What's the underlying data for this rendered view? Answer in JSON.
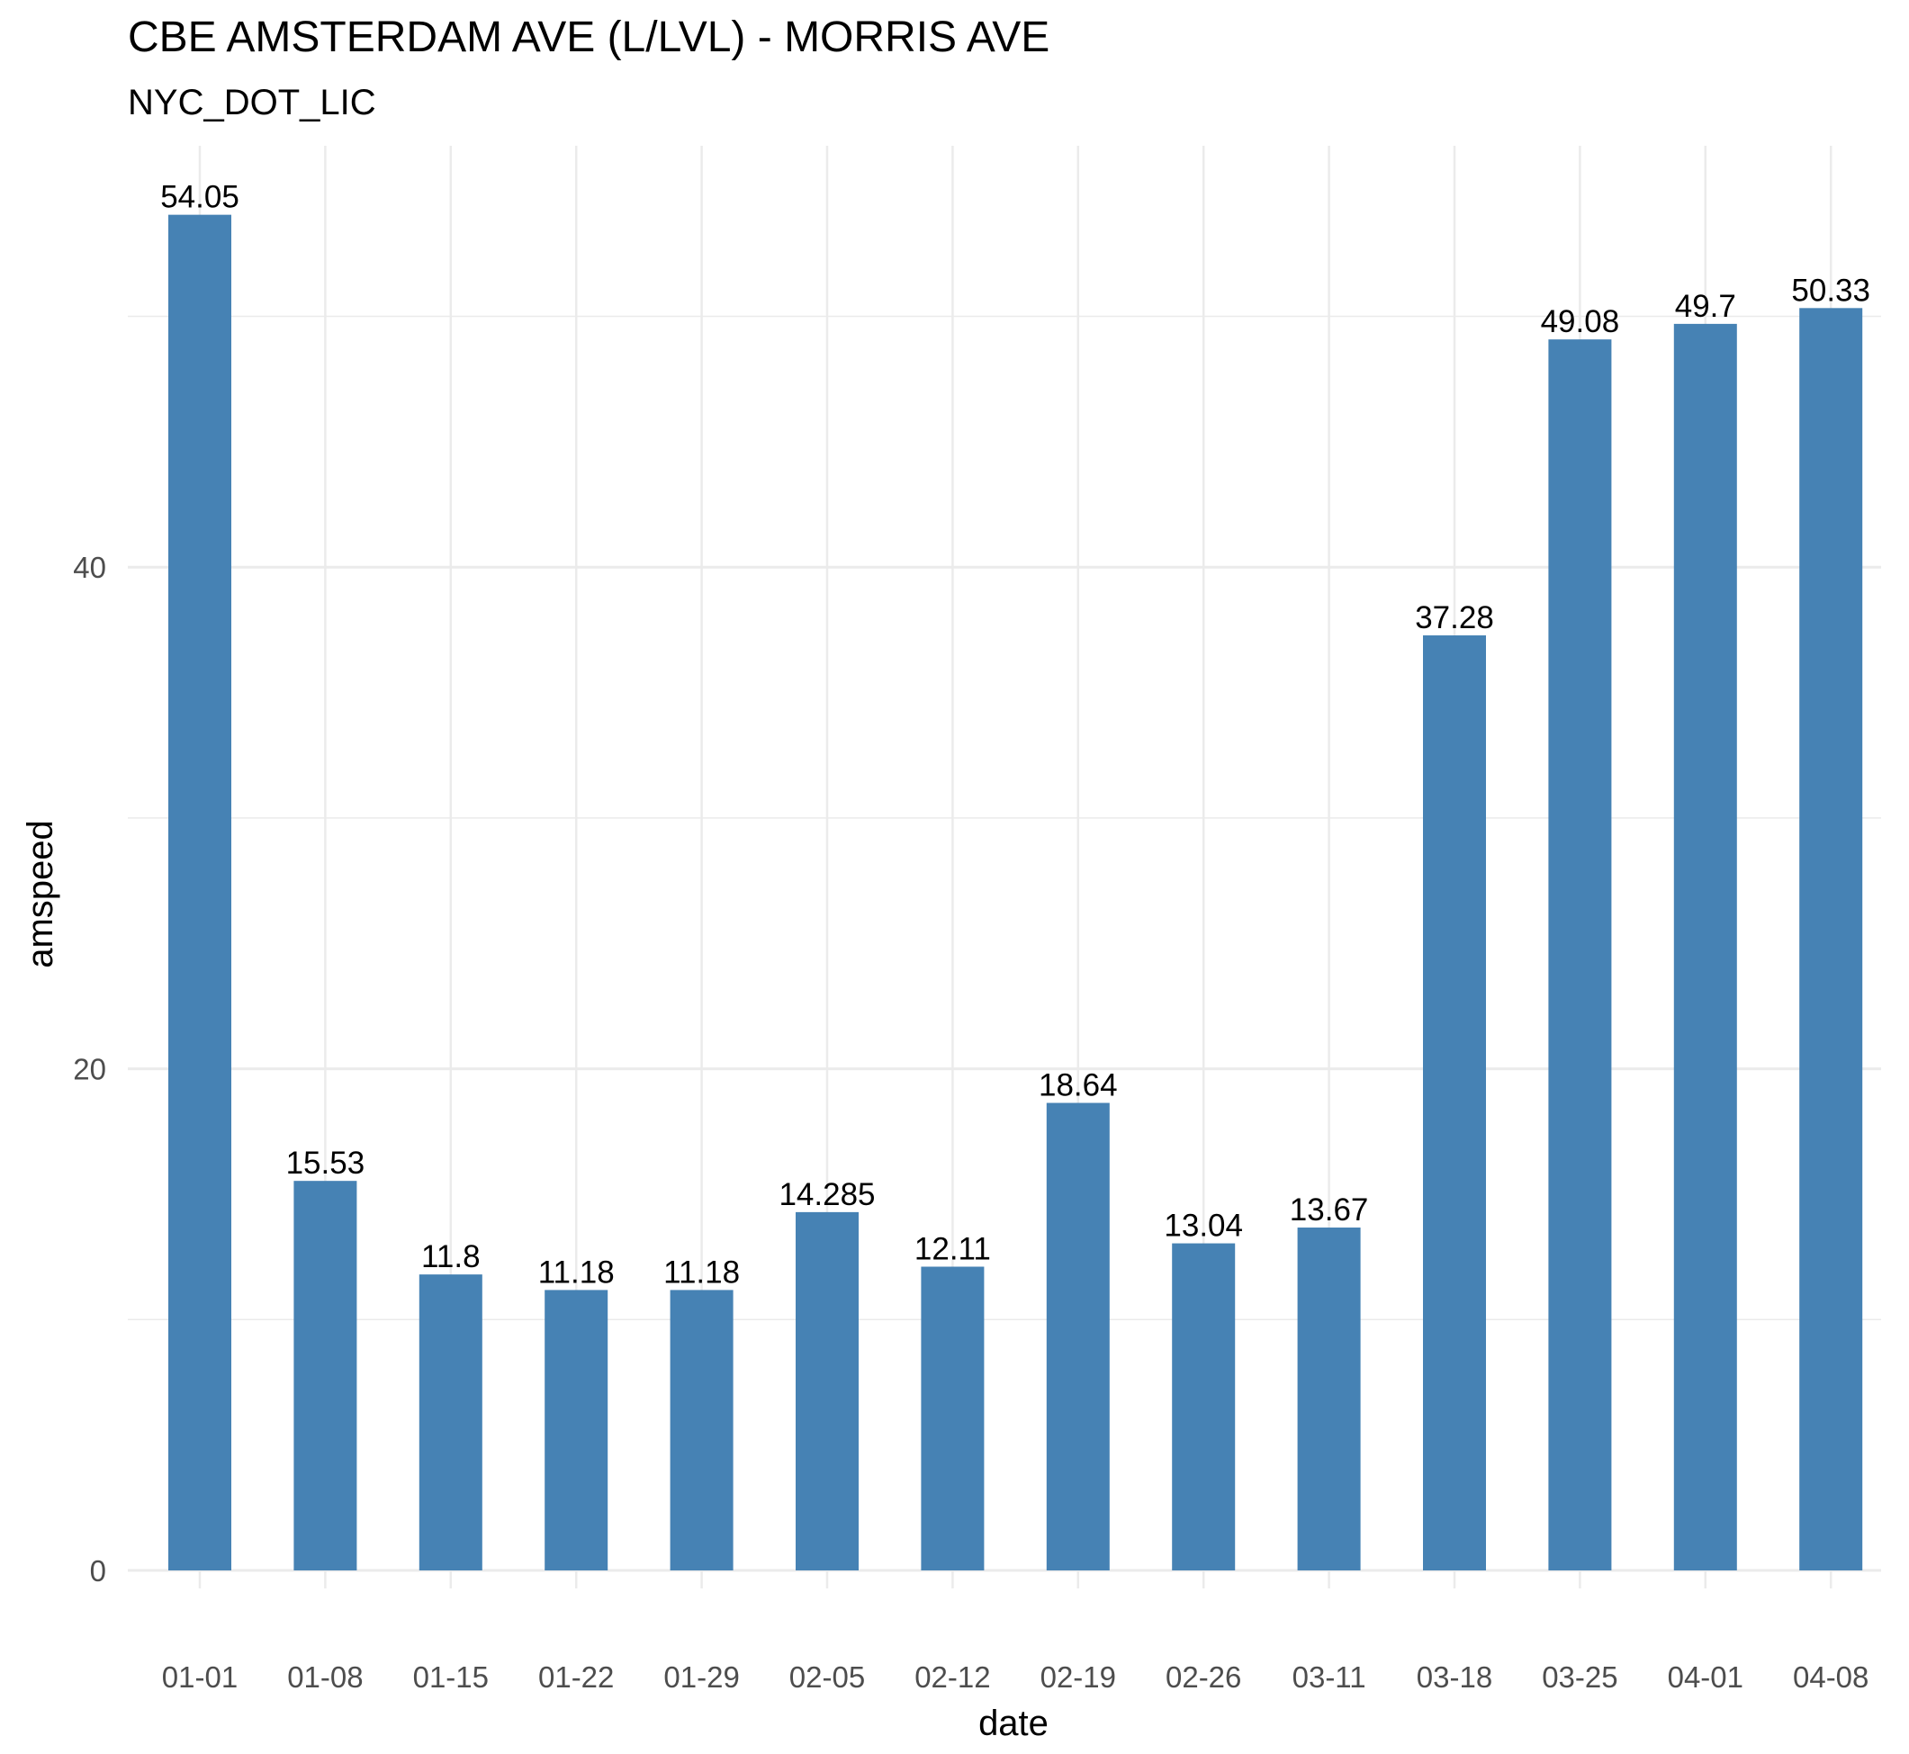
{
  "chart_data": {
    "type": "bar",
    "title": "CBE AMSTERDAM AVE (L/LVL) - MORRIS AVE",
    "subtitle": "NYC_DOT_LIC",
    "xlabel": "date",
    "ylabel": "amspeed",
    "categories": [
      "01-01",
      "01-08",
      "01-15",
      "01-22",
      "01-29",
      "02-05",
      "02-12",
      "02-19",
      "02-26",
      "03-11",
      "03-18",
      "03-25",
      "04-01",
      "04-08"
    ],
    "values": [
      54.05,
      15.53,
      11.8,
      11.18,
      11.18,
      14.285,
      12.11,
      18.64,
      13.04,
      13.67,
      37.28,
      49.08,
      49.7,
      50.33
    ],
    "value_labels": [
      "54.05",
      "15.53",
      "11.8",
      "11.18",
      "11.18",
      "14.285",
      "12.11",
      "18.64",
      "13.04",
      "13.67",
      "37.28",
      "49.08",
      "49.7",
      "50.33"
    ],
    "y_ticks": [
      0,
      20,
      40
    ],
    "ylim": [
      0,
      56.8
    ],
    "grid": true,
    "bar_color": "#4682B4",
    "grid_color": "#EBEBEB"
  }
}
